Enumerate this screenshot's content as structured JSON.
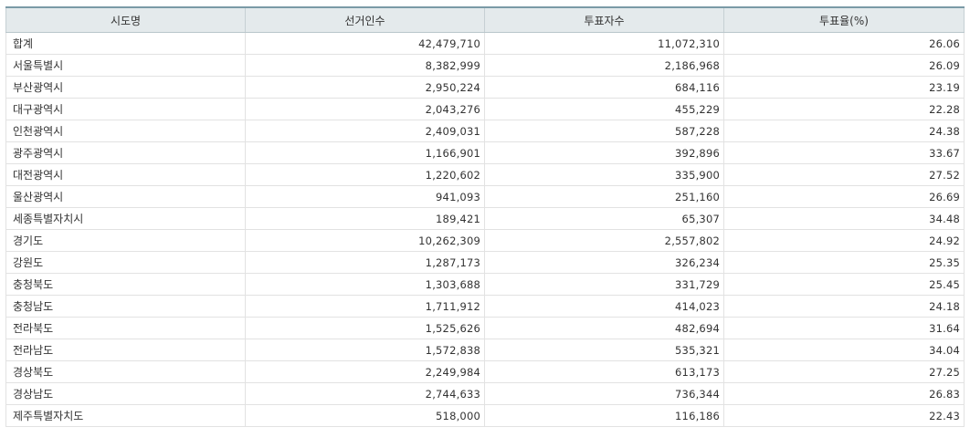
{
  "chart_data": {
    "type": "table",
    "columns": [
      "시도명",
      "선거인수",
      "투표자수",
      "투표율(%)"
    ],
    "rows": [
      [
        "합계",
        "42,479,710",
        "11,072,310",
        "26.06"
      ],
      [
        "서울특별시",
        "8,382,999",
        "2,186,968",
        "26.09"
      ],
      [
        "부산광역시",
        "2,950,224",
        "684,116",
        "23.19"
      ],
      [
        "대구광역시",
        "2,043,276",
        "455,229",
        "22.28"
      ],
      [
        "인천광역시",
        "2,409,031",
        "587,228",
        "24.38"
      ],
      [
        "광주광역시",
        "1,166,901",
        "392,896",
        "33.67"
      ],
      [
        "대전광역시",
        "1,220,602",
        "335,900",
        "27.52"
      ],
      [
        "울산광역시",
        "941,093",
        "251,160",
        "26.69"
      ],
      [
        "세종특별자치시",
        "189,421",
        "65,307",
        "34.48"
      ],
      [
        "경기도",
        "10,262,309",
        "2,557,802",
        "24.92"
      ],
      [
        "강원도",
        "1,287,173",
        "326,234",
        "25.35"
      ],
      [
        "충청북도",
        "1,303,688",
        "331,729",
        "25.45"
      ],
      [
        "충청남도",
        "1,711,912",
        "414,023",
        "24.18"
      ],
      [
        "전라북도",
        "1,525,626",
        "482,694",
        "31.64"
      ],
      [
        "전라남도",
        "1,572,838",
        "535,321",
        "34.04"
      ],
      [
        "경상북도",
        "2,249,984",
        "613,173",
        "27.25"
      ],
      [
        "경상남도",
        "2,744,633",
        "736,344",
        "26.83"
      ],
      [
        "제주특별자치도",
        "518,000",
        "116,186",
        "22.43"
      ]
    ]
  }
}
